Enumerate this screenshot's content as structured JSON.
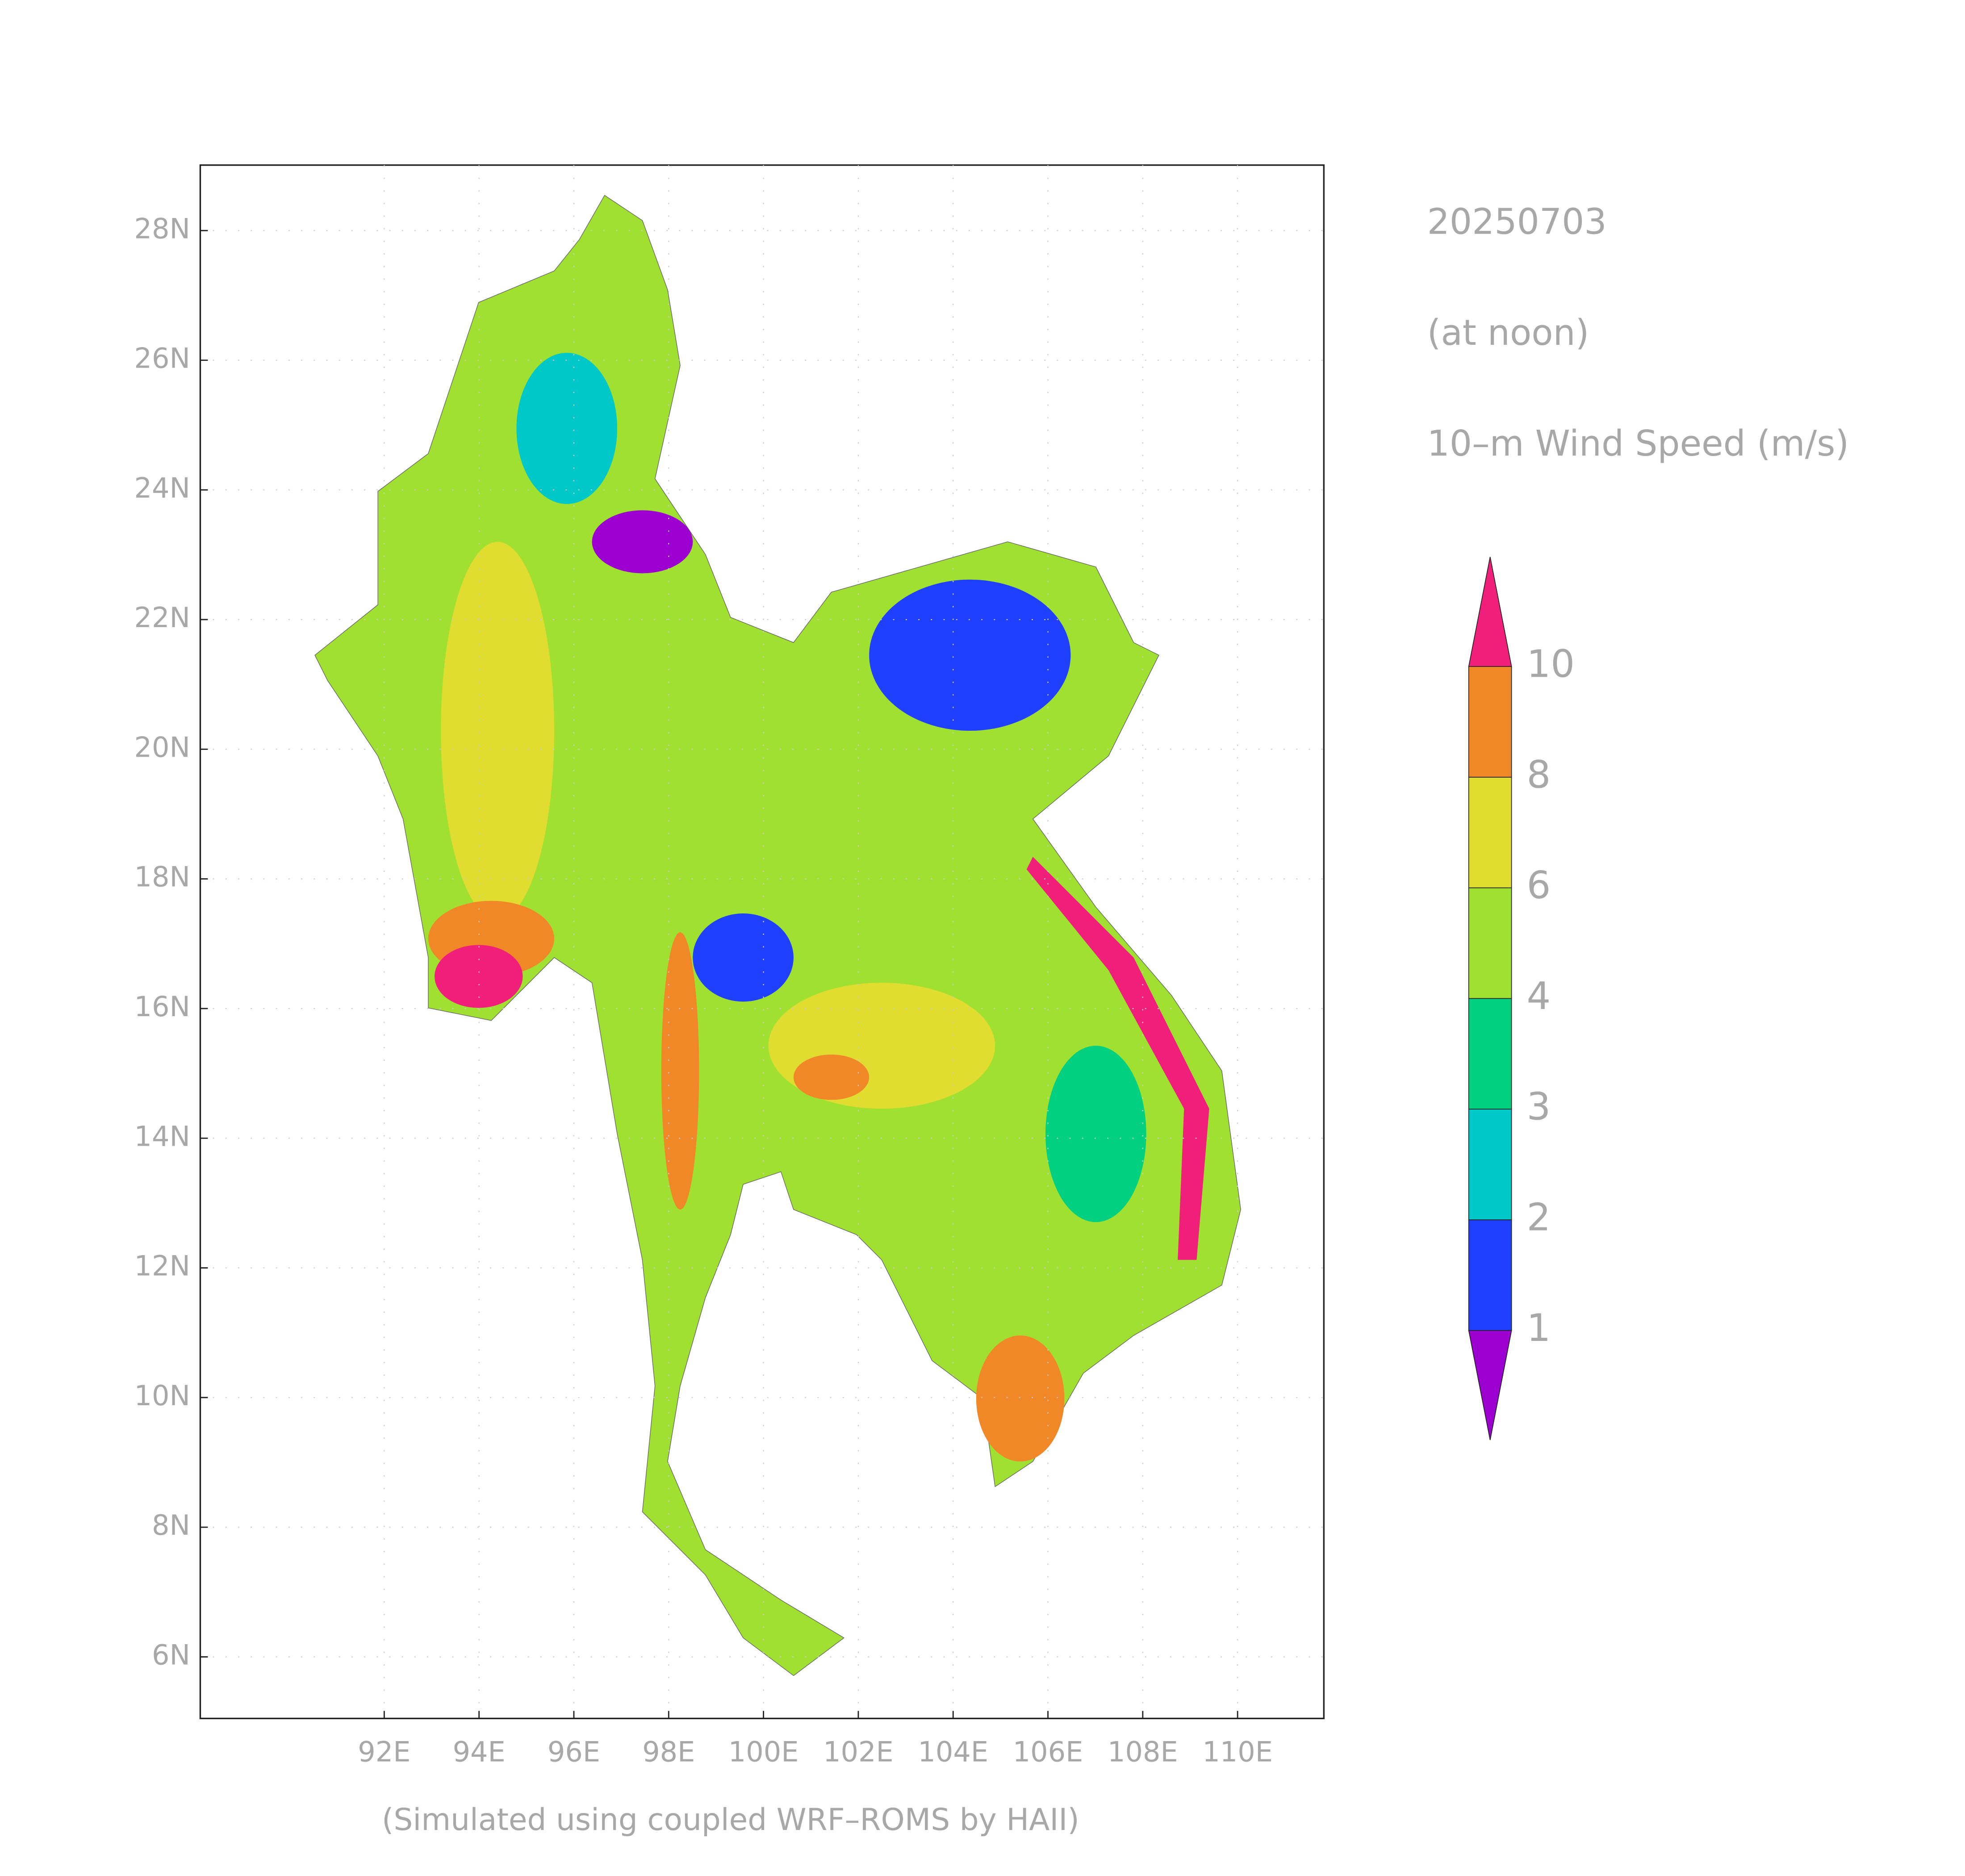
{
  "map": {
    "date": "20250703",
    "time_note": "(at noon)",
    "variable": "10–m Wind Speed (m/s)",
    "footer": "(Simulated using coupled WRF–ROMS by HAII)",
    "lonlim": [
      88.12,
      111.82
    ],
    "latlim": [
      5.05,
      29.01
    ],
    "lon_ticks": [
      {
        "value": 92,
        "label": "92E"
      },
      {
        "value": 94,
        "label": "94E"
      },
      {
        "value": 96,
        "label": "96E"
      },
      {
        "value": 98,
        "label": "98E"
      },
      {
        "value": 100,
        "label": "100E"
      },
      {
        "value": 102,
        "label": "102E"
      },
      {
        "value": 104,
        "label": "104E"
      },
      {
        "value": 106,
        "label": "106E"
      },
      {
        "value": 108,
        "label": "108E"
      },
      {
        "value": 110,
        "label": "110E"
      }
    ],
    "lat_ticks": [
      {
        "value": 6,
        "label": "6N"
      },
      {
        "value": 8,
        "label": "8N"
      },
      {
        "value": 10,
        "label": "10N"
      },
      {
        "value": 12,
        "label": "12N"
      },
      {
        "value": 14,
        "label": "14N"
      },
      {
        "value": 16,
        "label": "16N"
      },
      {
        "value": 18,
        "label": "18N"
      },
      {
        "value": 20,
        "label": "20N"
      },
      {
        "value": 22,
        "label": "22N"
      },
      {
        "value": 24,
        "label": "24N"
      },
      {
        "value": 26,
        "label": "26N"
      },
      {
        "value": 28,
        "label": "28N"
      }
    ],
    "colorbar": {
      "levels": [
        1,
        2,
        3,
        4,
        6,
        8,
        10
      ],
      "colors": [
        "#9b00d0",
        "#2040ff",
        "#00c8c8",
        "#00d080",
        "#a0e030",
        "#e0dc30",
        "#f08828",
        "#f0207a"
      ]
    }
  }
}
